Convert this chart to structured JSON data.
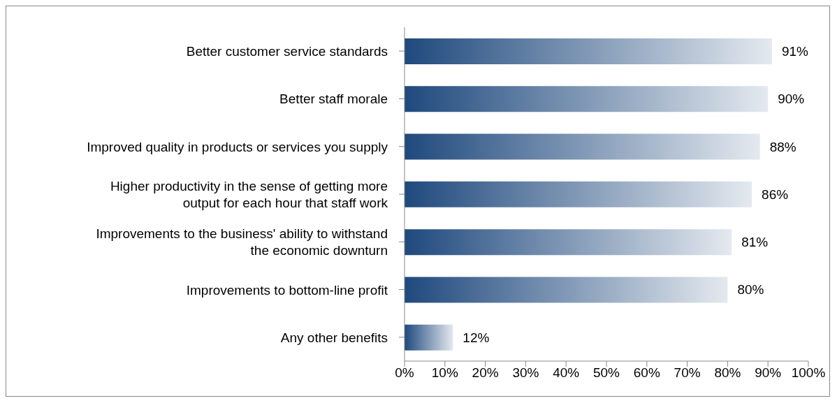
{
  "chart_data": {
    "type": "bar",
    "orientation": "horizontal",
    "categories": [
      "Better customer service standards",
      "Better staff morale",
      "Improved quality in products or services you supply",
      "Higher productivity in the sense of getting more output for each hour that staff work",
      "Improvements to the business' ability to withstand the economic downturn",
      "Improvements to bottom-line profit",
      "Any other benefits"
    ],
    "values": [
      91,
      90,
      88,
      86,
      81,
      80,
      12
    ],
    "value_labels": [
      "91%",
      "90%",
      "88%",
      "86%",
      "81%",
      "80%",
      "12%"
    ],
    "color": "#1f497d",
    "xlim": [
      0,
      100
    ],
    "xticks": [
      {
        "value": 0,
        "label": "0%"
      },
      {
        "value": 10,
        "label": "10%"
      },
      {
        "value": 20,
        "label": "20%"
      },
      {
        "value": 30,
        "label": "30%"
      },
      {
        "value": 40,
        "label": "40%"
      },
      {
        "value": 50,
        "label": "50%"
      },
      {
        "value": 60,
        "label": "60%"
      },
      {
        "value": 70,
        "label": "70%"
      },
      {
        "value": 80,
        "label": "80%"
      },
      {
        "value": 90,
        "label": "90%"
      },
      {
        "value": 100,
        "label": "100%"
      }
    ],
    "grid": false,
    "legend": false
  }
}
